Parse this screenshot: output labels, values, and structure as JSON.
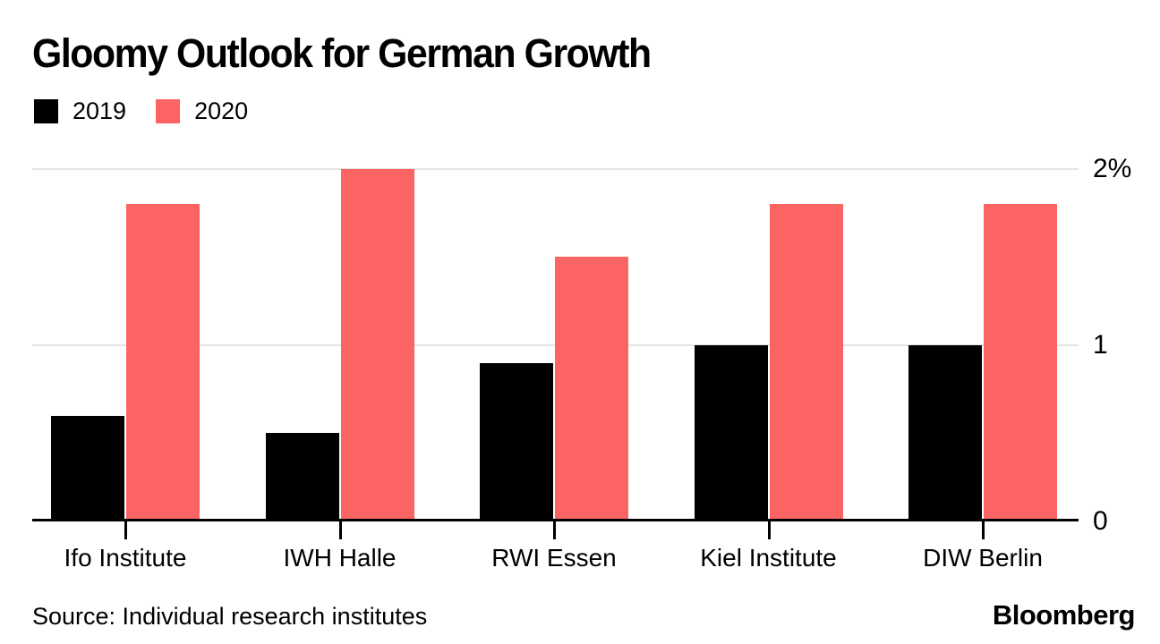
{
  "title": "Gloomy Outlook for German Growth",
  "legend": [
    {
      "label": "2019",
      "color": "#000000"
    },
    {
      "label": "2020",
      "color": "#FC6464"
    }
  ],
  "chart_data": {
    "type": "bar",
    "title": "Gloomy Outlook for German Growth",
    "categories": [
      "Ifo Institute",
      "IWH Halle",
      "RWI Essen",
      "Kiel Institute",
      "DIW Berlin"
    ],
    "series": [
      {
        "name": "2019",
        "color": "#000000",
        "values": [
          0.6,
          0.5,
          0.9,
          1.0,
          1.0
        ]
      },
      {
        "name": "2020",
        "color": "#FC6464",
        "values": [
          1.8,
          2.0,
          1.5,
          1.8,
          1.8
        ]
      }
    ],
    "xlabel": "",
    "ylabel": "",
    "ylim": [
      0,
      2
    ],
    "yticks": [
      {
        "value": 0,
        "label": "0"
      },
      {
        "value": 1,
        "label": "1"
      },
      {
        "value": 2,
        "label": "2%"
      }
    ],
    "grid": true,
    "legend_position": "top-left",
    "unit": "percent"
  },
  "footer": {
    "source": "Source: Individual research institutes",
    "brand": "Bloomberg"
  },
  "colors": {
    "bar_2019": "#000000",
    "bar_2020": "#FC6464",
    "gridline": "#E4E4E4",
    "axis": "#000000",
    "text": "#000000",
    "background": "#FFFFFF"
  }
}
